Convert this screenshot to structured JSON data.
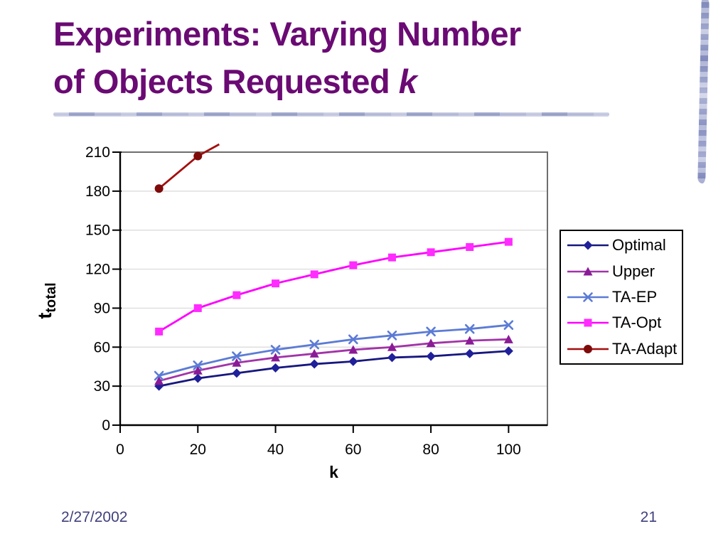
{
  "slide": {
    "title_line1": "Experiments: Varying Number",
    "title_line2_prefix": "of Objects Requested ",
    "title_line2_italic": "k",
    "footer_date": "2/27/2002",
    "page_number": "21"
  },
  "colors": {
    "title": "#6a0a73",
    "footer": "#40407d",
    "gridline": "#d9d9d9",
    "plot_frame": "#6e6e6e",
    "axis": "#000000",
    "legend_border": "#000000"
  },
  "chart_data": {
    "type": "line",
    "x": [
      10,
      20,
      30,
      40,
      50,
      60,
      70,
      80,
      90,
      100
    ],
    "series": [
      {
        "name": "Optimal",
        "marker": "diamond",
        "line_color": "#17177f",
        "marker_color": "#20209b",
        "values": [
          30,
          36,
          40,
          44,
          47,
          49,
          52,
          53,
          55,
          57
        ]
      },
      {
        "name": "Upper",
        "marker": "triangle",
        "line_color": "#a233a8",
        "marker_color": "#8a1b96",
        "values": [
          34,
          42,
          48,
          52,
          55,
          58,
          60,
          63,
          65,
          66
        ]
      },
      {
        "name": "TA-EP",
        "marker": "x",
        "line_color": "#5b7bd5",
        "marker_color": "#5b7bd5",
        "values": [
          38,
          46,
          53,
          58,
          62,
          66,
          69,
          72,
          74,
          77
        ]
      },
      {
        "name": "TA-Opt",
        "marker": "square",
        "line_color": "#ff00ff",
        "marker_color": "#ff2bff",
        "values": [
          72,
          90,
          100,
          109,
          116,
          123,
          129,
          133,
          137,
          141
        ]
      },
      {
        "name": "TA-Adapt",
        "marker": "circle",
        "line_color": "#a40e0e",
        "marker_color": "#7f0a0a",
        "values": [
          182,
          207
        ],
        "overflow_to": {
          "x": 25.5,
          "v": 216
        }
      }
    ],
    "title": "",
    "xlabel": "k",
    "ylabel_main": "t",
    "ylabel_sub": "total",
    "x_ticks": [
      0,
      20,
      40,
      60,
      80,
      100
    ],
    "y_ticks": [
      0,
      30,
      60,
      90,
      120,
      150,
      180,
      210
    ],
    "xlim": [
      0,
      110
    ],
    "ylim": [
      0,
      210
    ],
    "grid": "horizontal-only",
    "legend_position": "right"
  }
}
